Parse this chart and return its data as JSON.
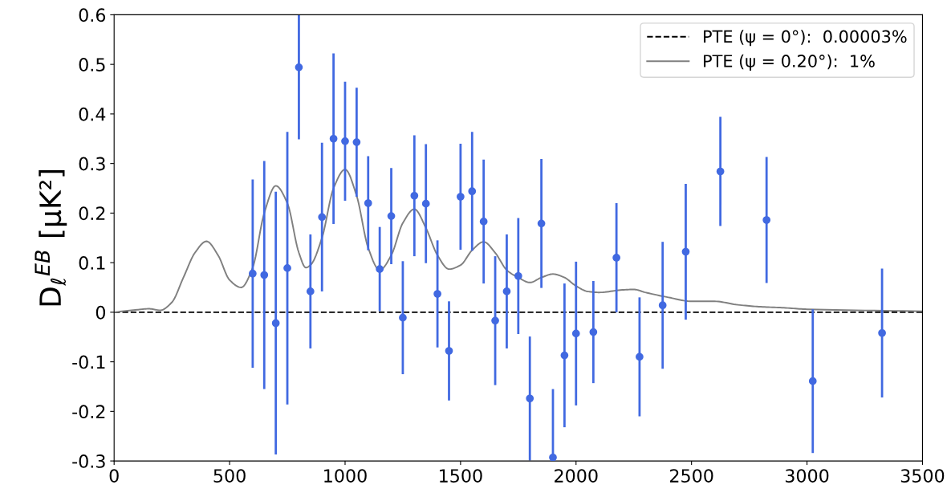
{
  "chart_data": {
    "type": "scatter",
    "ylabel": "D$_{ℓ}$$^{EB}$ [μK²]",
    "xlim": [
      0,
      3500
    ],
    "xticks": [
      0,
      500,
      1000,
      1500,
      2000,
      2500,
      3000,
      3500
    ],
    "ylim": [
      -0.3,
      0.6
    ],
    "yticks": [
      -0.3,
      -0.2,
      -0.1,
      0.0,
      0.1,
      0.2,
      0.3,
      0.4,
      0.5,
      0.6
    ],
    "grid": false,
    "legend": "top right",
    "series": [
      {
        "name": "PTE (ψ = 0°):  0.00003%",
        "type": "line",
        "line_style": "dashed",
        "marker": "none",
        "color": "#000000",
        "x": [
          0,
          3500
        ],
        "values": [
          0,
          0
        ]
      },
      {
        "name": "PTE (ψ = 0.20°):  1%",
        "type": "line",
        "line_style": "solid",
        "marker": "none",
        "color": "#808080",
        "x": [
          0,
          100,
          150,
          200,
          250,
          300,
          350,
          400,
          450,
          500,
          550,
          600,
          650,
          700,
          750,
          800,
          830,
          850,
          900,
          950,
          1000,
          1050,
          1100,
          1150,
          1200,
          1250,
          1300,
          1350,
          1400,
          1450,
          1500,
          1550,
          1600,
          1650,
          1700,
          1750,
          1800,
          1850,
          1900,
          1950,
          2000,
          2050,
          2100,
          2200,
          2250,
          2300,
          2400,
          2500,
          2600,
          2700,
          2800,
          2900,
          3000,
          3500
        ],
        "values": [
          0,
          0.005,
          0.007,
          0.004,
          0.02,
          0.07,
          0.12,
          0.143,
          0.115,
          0.065,
          0.05,
          0.09,
          0.2,
          0.255,
          0.22,
          0.12,
          0.09,
          0.095,
          0.15,
          0.25,
          0.288,
          0.235,
          0.13,
          0.085,
          0.115,
          0.18,
          0.208,
          0.17,
          0.115,
          0.087,
          0.095,
          0.125,
          0.142,
          0.12,
          0.085,
          0.07,
          0.06,
          0.07,
          0.077,
          0.07,
          0.053,
          0.042,
          0.04,
          0.045,
          0.046,
          0.04,
          0.03,
          0.022,
          0.022,
          0.015,
          0.011,
          0.009,
          0.006,
          0.002
        ]
      },
      {
        "marker": "circle",
        "color": "#4169e1",
        "x": [
          600,
          650,
          700,
          750,
          800,
          850,
          900,
          950,
          1000,
          1050,
          1100,
          1150,
          1200,
          1250,
          1300,
          1350,
          1400,
          1450,
          1500,
          1550,
          1600,
          1650,
          1700,
          1750,
          1800,
          1850,
          1900,
          1950,
          2000,
          2075,
          2175,
          2275,
          2375,
          2475,
          2625,
          2825,
          3025,
          3325
        ],
        "values": [
          0.078,
          0.075,
          -0.022,
          0.089,
          0.494,
          0.042,
          0.192,
          0.35,
          0.345,
          0.343,
          0.22,
          0.087,
          0.194,
          -0.011,
          0.235,
          0.219,
          0.037,
          -0.078,
          0.233,
          0.244,
          0.183,
          -0.017,
          0.042,
          0.073,
          -0.174,
          0.179,
          -0.293,
          -0.087,
          -0.043,
          -0.04,
          0.11,
          -0.09,
          0.014,
          0.122,
          0.284,
          0.186,
          -0.139,
          -0.042
        ],
        "errors": [
          0.19,
          0.23,
          0.265,
          0.275,
          [
            0.349,
            0.6
          ],
          0.115,
          0.15,
          0.172,
          0.12,
          0.11,
          0.095,
          0.085,
          0.097,
          0.114,
          0.122,
          0.12,
          0.108,
          0.1,
          0.107,
          0.12,
          0.125,
          0.13,
          0.115,
          0.117,
          0.125,
          0.13,
          [
            -0.3,
            -0.155
          ],
          0.145,
          0.145,
          0.103,
          0.11,
          0.12,
          0.128,
          0.137,
          0.11,
          0.127,
          0.145,
          0.13
        ]
      }
    ]
  }
}
